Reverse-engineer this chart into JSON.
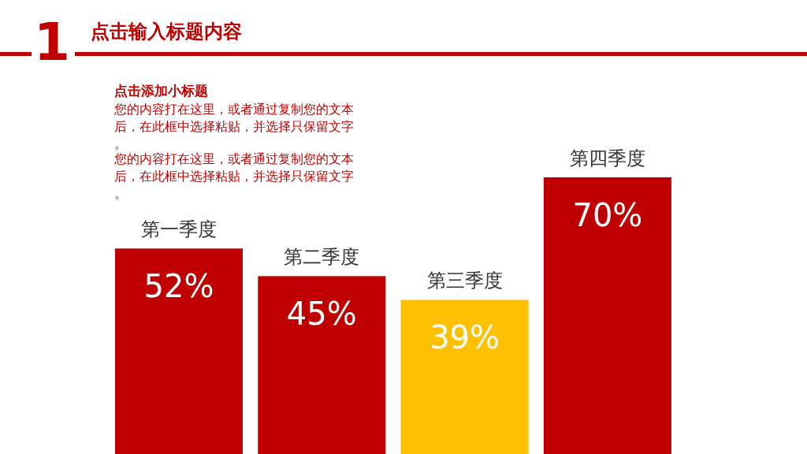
{
  "chart_data": {
    "type": "bar",
    "title": "点击输入标题内容",
    "subtitle": "点击添加小标题",
    "annotations": [
      "1",
      "您的内容打在这里，或者通过复制您的文本后，在此框中选择粘贴，并选择只保留文字。",
      "您的内容打在这里，或者通过复制您的文本后，在此框中选择粘贴，并选择只保留文字。"
    ],
    "categories": [
      "第一季度",
      "第二季度",
      "第三季度",
      "第四季度"
    ],
    "values": [
      52,
      45,
      39,
      70
    ],
    "colors": [
      "#c00000",
      "#c00000",
      "#ffc000",
      "#c00000"
    ],
    "value_labels": [
      "52%",
      "45%",
      "39%",
      "70%"
    ]
  }
}
